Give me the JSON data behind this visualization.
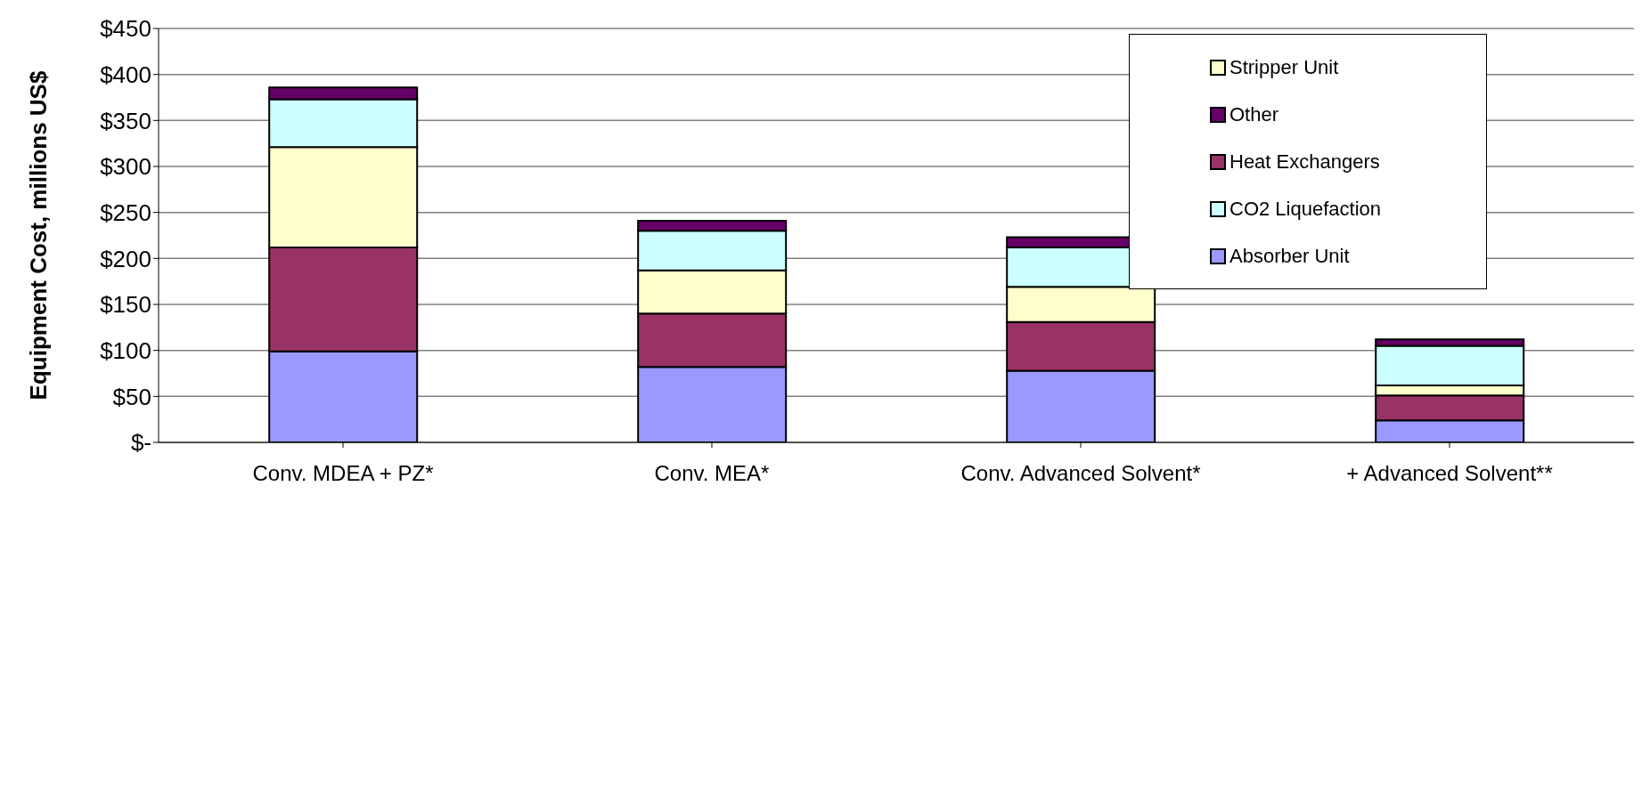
{
  "chart_data": {
    "type": "bar",
    "stacked": true,
    "ylabel": "Equipment Cost, millions US$",
    "categories": [
      "Conv. MDEA + PZ*",
      "Conv. MEA*",
      "Conv. Advanced Solvent*",
      "+ Advanced Solvent**"
    ],
    "series": [
      {
        "name": "Absorber Unit",
        "color": "#9999ff",
        "values": [
          99,
          82,
          78,
          24
        ]
      },
      {
        "name": "Heat Exchangers",
        "color": "#993366",
        "values": [
          113,
          58,
          53,
          27
        ]
      },
      {
        "name": "Stripper Unit",
        "color": "#ffffcc",
        "values": [
          109,
          47,
          38,
          11
        ]
      },
      {
        "name": "CO2 Liquefaction",
        "color": "#ccffff",
        "values": [
          52,
          43,
          43,
          43
        ]
      },
      {
        "name": "Other",
        "color": "#660066",
        "values": [
          13,
          11,
          11,
          7
        ]
      }
    ],
    "ylim": [
      0,
      450
    ],
    "yticks": [
      {
        "value": 0,
        "label": "$-"
      },
      {
        "value": 50,
        "label": "$50"
      },
      {
        "value": 100,
        "label": "$100"
      },
      {
        "value": 150,
        "label": "$150"
      },
      {
        "value": 200,
        "label": "$200"
      },
      {
        "value": 250,
        "label": "$250"
      },
      {
        "value": 300,
        "label": "$300"
      },
      {
        "value": 350,
        "label": "$350"
      },
      {
        "value": 400,
        "label": "$400"
      },
      {
        "value": 450,
        "label": "$450"
      }
    ],
    "grid": "y",
    "legend": "top right"
  }
}
